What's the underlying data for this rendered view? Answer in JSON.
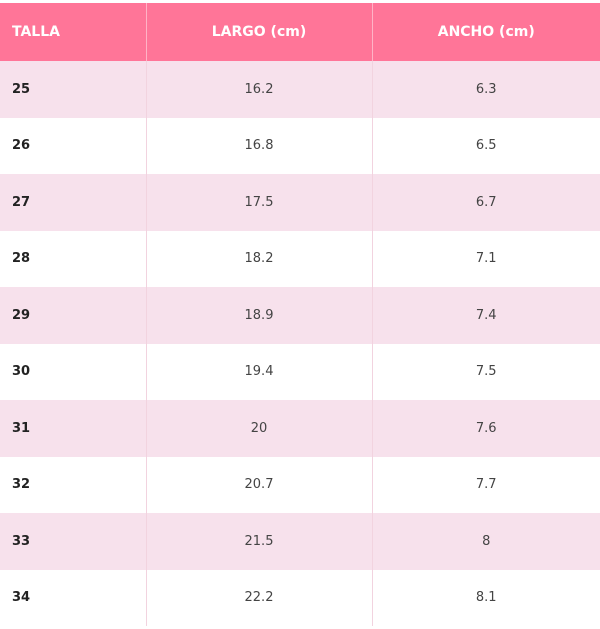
{
  "table": {
    "header": [
      "TALLA",
      "LARGO (cm)",
      "ANCHO (cm)"
    ],
    "rows": [
      [
        "25",
        "16.2",
        "6.3"
      ],
      [
        "26",
        "16.8",
        "6.5"
      ],
      [
        "27",
        "17.5",
        "6.7"
      ],
      [
        "28",
        "18.2",
        "7.1"
      ],
      [
        "29",
        "18.9",
        "7.4"
      ],
      [
        "30",
        "19.4",
        "7.5"
      ],
      [
        "31",
        "20",
        "7.6"
      ],
      [
        "32",
        "20.7",
        "7.7"
      ],
      [
        "33",
        "21.5",
        "8"
      ],
      [
        "34",
        "22.2",
        "8.1"
      ]
    ]
  }
}
